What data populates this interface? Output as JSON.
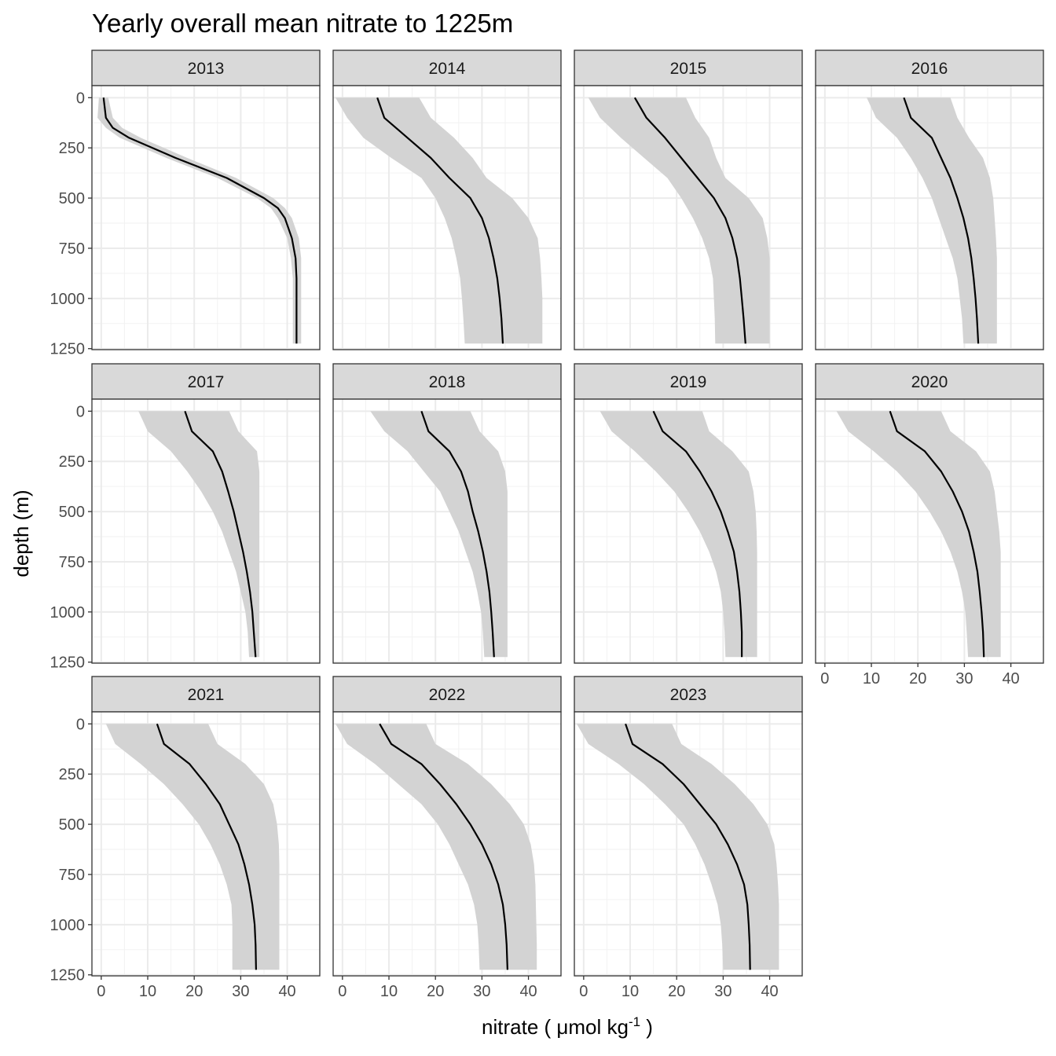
{
  "chart_data": {
    "type": "line",
    "title": "Yearly overall mean nitrate to 1225m",
    "xlabel": "nitrate ( μmol kg",
    "xlabel_superscript": "-1",
    "xlabel_suffix": " )",
    "ylabel": "depth (m)",
    "xlim": [
      -2,
      47
    ],
    "ylim": [
      1255,
      -60
    ],
    "y_reversed": true,
    "x_ticks": [
      0,
      10,
      20,
      30,
      40
    ],
    "y_ticks": [
      0,
      250,
      500,
      750,
      1000,
      1250
    ],
    "x_tick_labels": [
      "0",
      "10",
      "20",
      "30",
      "40"
    ],
    "y_tick_labels": [
      "0",
      "250",
      "500",
      "750",
      "1000",
      "1250"
    ],
    "grid": true,
    "legend": "none",
    "line_color": "#000000",
    "ribbon_color": "#d3d3d3",
    "panels": [
      {
        "label": "2013",
        "depth": [
          0,
          100,
          150,
          200,
          300,
          400,
          500,
          550,
          600,
          700,
          800,
          900,
          1000,
          1100,
          1225
        ],
        "mean": [
          0.5,
          1.0,
          2.5,
          6.0,
          16.0,
          27.0,
          35.0,
          38.0,
          39.5,
          41.0,
          41.8,
          42.0,
          42.0,
          42.0,
          42.0
        ],
        "lower": [
          -0.5,
          -0.8,
          1.0,
          4.0,
          14.0,
          25.0,
          33.5,
          36.5,
          38.0,
          40.0,
          40.8,
          41.2,
          41.2,
          41.2,
          41.2
        ],
        "upper": [
          1.5,
          2.5,
          4.5,
          8.5,
          18.5,
          29.0,
          37.0,
          39.5,
          41.0,
          42.5,
          43.0,
          43.0,
          43.0,
          43.0,
          43.0
        ]
      },
      {
        "label": "2014",
        "depth": [
          0,
          100,
          200,
          300,
          400,
          500,
          600,
          700,
          800,
          900,
          1000,
          1100,
          1225
        ],
        "mean": [
          7.5,
          9.0,
          14.0,
          19.0,
          23.0,
          27.5,
          30.0,
          31.5,
          32.5,
          33.3,
          33.8,
          34.2,
          34.5
        ],
        "lower": [
          -1.5,
          1.0,
          4.5,
          10.5,
          17.0,
          20.0,
          22.0,
          23.5,
          24.5,
          25.3,
          25.7,
          26.0,
          26.3
        ],
        "upper": [
          16.5,
          19.0,
          24.0,
          28.0,
          31.0,
          36.5,
          40.0,
          42.0,
          42.5,
          42.8,
          43.0,
          43.0,
          43.0
        ]
      },
      {
        "label": "2015",
        "depth": [
          0,
          100,
          200,
          300,
          400,
          500,
          600,
          700,
          800,
          900,
          1000,
          1100,
          1225
        ],
        "mean": [
          11.0,
          13.5,
          17.5,
          21.0,
          24.5,
          28.0,
          30.5,
          32.0,
          33.0,
          33.6,
          34.0,
          34.4,
          34.8
        ],
        "lower": [
          1.0,
          3.5,
          8.0,
          13.0,
          18.0,
          21.0,
          23.5,
          25.5,
          27.0,
          27.8,
          28.0,
          28.2,
          28.3
        ],
        "upper": [
          22.0,
          24.0,
          27.0,
          28.5,
          30.5,
          35.5,
          38.5,
          39.5,
          40.0,
          40.0,
          40.0,
          40.0,
          40.0
        ]
      },
      {
        "label": "2016",
        "depth": [
          0,
          100,
          200,
          300,
          400,
          500,
          600,
          700,
          800,
          900,
          1000,
          1100,
          1225
        ],
        "mean": [
          17.0,
          18.5,
          23.0,
          25.0,
          27.0,
          28.5,
          29.8,
          30.8,
          31.5,
          32.0,
          32.4,
          32.7,
          33.0
        ],
        "lower": [
          9.0,
          11.0,
          15.5,
          18.5,
          21.0,
          23.0,
          24.5,
          26.0,
          27.5,
          28.5,
          29.0,
          29.5,
          29.8
        ],
        "upper": [
          27.0,
          28.5,
          31.0,
          34.0,
          35.5,
          36.2,
          36.5,
          36.8,
          37.0,
          37.0,
          37.0,
          37.0,
          37.0
        ]
      },
      {
        "label": "2017",
        "depth": [
          0,
          100,
          200,
          300,
          400,
          500,
          600,
          700,
          800,
          900,
          1000,
          1100,
          1225
        ],
        "mean": [
          18.0,
          19.5,
          24.0,
          26.0,
          27.3,
          28.5,
          29.5,
          30.5,
          31.3,
          32.0,
          32.5,
          32.8,
          33.2
        ],
        "lower": [
          8.0,
          10.0,
          15.0,
          18.5,
          21.5,
          24.0,
          26.0,
          27.5,
          29.0,
          30.0,
          31.0,
          31.5,
          31.8
        ],
        "upper": [
          27.5,
          29.5,
          33.5,
          34.0,
          34.0,
          34.0,
          34.0,
          34.0,
          34.0,
          34.0,
          34.0,
          34.0,
          34.0
        ]
      },
      {
        "label": "2018",
        "depth": [
          0,
          100,
          200,
          300,
          400,
          500,
          600,
          700,
          800,
          900,
          1000,
          1100,
          1225
        ],
        "mean": [
          17.0,
          18.5,
          23.0,
          25.5,
          27.0,
          28.0,
          29.2,
          30.2,
          31.0,
          31.6,
          32.0,
          32.3,
          32.6
        ],
        "lower": [
          6.0,
          9.0,
          14.0,
          17.5,
          21.0,
          23.0,
          25.0,
          26.5,
          28.0,
          29.0,
          29.8,
          30.2,
          30.5
        ],
        "upper": [
          27.5,
          29.5,
          33.5,
          35.0,
          35.5,
          35.5,
          35.5,
          35.5,
          35.5,
          35.5,
          35.5,
          35.5,
          35.5
        ]
      },
      {
        "label": "2019",
        "depth": [
          0,
          100,
          200,
          300,
          400,
          500,
          600,
          700,
          800,
          900,
          1000,
          1100,
          1225
        ],
        "mean": [
          15.0,
          17.0,
          22.0,
          25.0,
          27.5,
          29.5,
          31.0,
          32.3,
          33.0,
          33.5,
          33.8,
          34.0,
          34.0
        ],
        "lower": [
          3.5,
          6.0,
          11.0,
          15.5,
          19.5,
          22.5,
          25.0,
          27.0,
          28.5,
          29.5,
          30.0,
          30.3,
          30.5
        ],
        "upper": [
          25.5,
          27.0,
          32.0,
          35.5,
          36.5,
          37.0,
          37.2,
          37.3,
          37.3,
          37.3,
          37.3,
          37.3,
          37.3
        ]
      },
      {
        "label": "2020",
        "depth": [
          0,
          100,
          200,
          300,
          400,
          500,
          600,
          700,
          800,
          900,
          1000,
          1100,
          1225
        ],
        "mean": [
          14.0,
          15.5,
          21.5,
          25.0,
          27.5,
          29.5,
          31.0,
          32.0,
          32.8,
          33.3,
          33.7,
          34.0,
          34.2
        ],
        "lower": [
          2.5,
          5.0,
          10.5,
          15.5,
          19.5,
          22.5,
          25.0,
          27.0,
          28.5,
          29.5,
          30.2,
          30.5,
          30.8
        ],
        "upper": [
          25.0,
          27.0,
          32.5,
          35.5,
          36.5,
          37.0,
          37.5,
          37.8,
          37.8,
          37.8,
          37.8,
          37.8,
          37.8
        ]
      },
      {
        "label": "2021",
        "depth": [
          0,
          100,
          200,
          300,
          400,
          500,
          600,
          700,
          800,
          900,
          1000,
          1100,
          1225
        ],
        "mean": [
          12.0,
          13.5,
          19.0,
          22.5,
          25.5,
          27.5,
          29.5,
          30.8,
          31.8,
          32.5,
          33.0,
          33.2,
          33.3
        ],
        "lower": [
          1.0,
          3.0,
          8.5,
          13.5,
          17.5,
          21.0,
          23.5,
          25.5,
          27.0,
          28.0,
          28.2,
          28.2,
          28.2
        ],
        "upper": [
          23.0,
          25.0,
          31.0,
          35.0,
          37.0,
          37.8,
          38.2,
          38.3,
          38.3,
          38.3,
          38.3,
          38.3,
          38.3
        ]
      },
      {
        "label": "2022",
        "depth": [
          0,
          100,
          200,
          300,
          400,
          500,
          600,
          700,
          800,
          900,
          1000,
          1100,
          1225
        ],
        "mean": [
          8.0,
          10.5,
          17.0,
          21.0,
          24.5,
          27.5,
          30.0,
          32.0,
          33.5,
          34.5,
          35.0,
          35.3,
          35.5
        ],
        "lower": [
          -1.5,
          1.0,
          7.0,
          12.0,
          17.0,
          20.5,
          23.0,
          25.0,
          27.0,
          28.3,
          29.0,
          29.3,
          29.5
        ],
        "upper": [
          18.0,
          20.0,
          27.0,
          32.0,
          36.0,
          39.0,
          40.5,
          41.2,
          41.5,
          41.6,
          41.7,
          41.8,
          41.8
        ]
      },
      {
        "label": "2023",
        "depth": [
          0,
          100,
          200,
          300,
          400,
          500,
          600,
          700,
          800,
          900,
          1000,
          1100,
          1225
        ],
        "mean": [
          9.0,
          10.5,
          17.0,
          21.5,
          25.0,
          28.5,
          31.0,
          33.0,
          34.5,
          35.2,
          35.5,
          35.7,
          35.8
        ],
        "lower": [
          -1.5,
          1.0,
          7.5,
          13.0,
          17.5,
          21.5,
          24.0,
          26.0,
          27.5,
          28.8,
          29.5,
          29.8,
          30.0
        ],
        "upper": [
          19.0,
          21.0,
          27.5,
          32.5,
          36.5,
          39.5,
          41.0,
          41.5,
          41.8,
          42.0,
          42.0,
          42.0,
          42.0
        ]
      }
    ]
  }
}
